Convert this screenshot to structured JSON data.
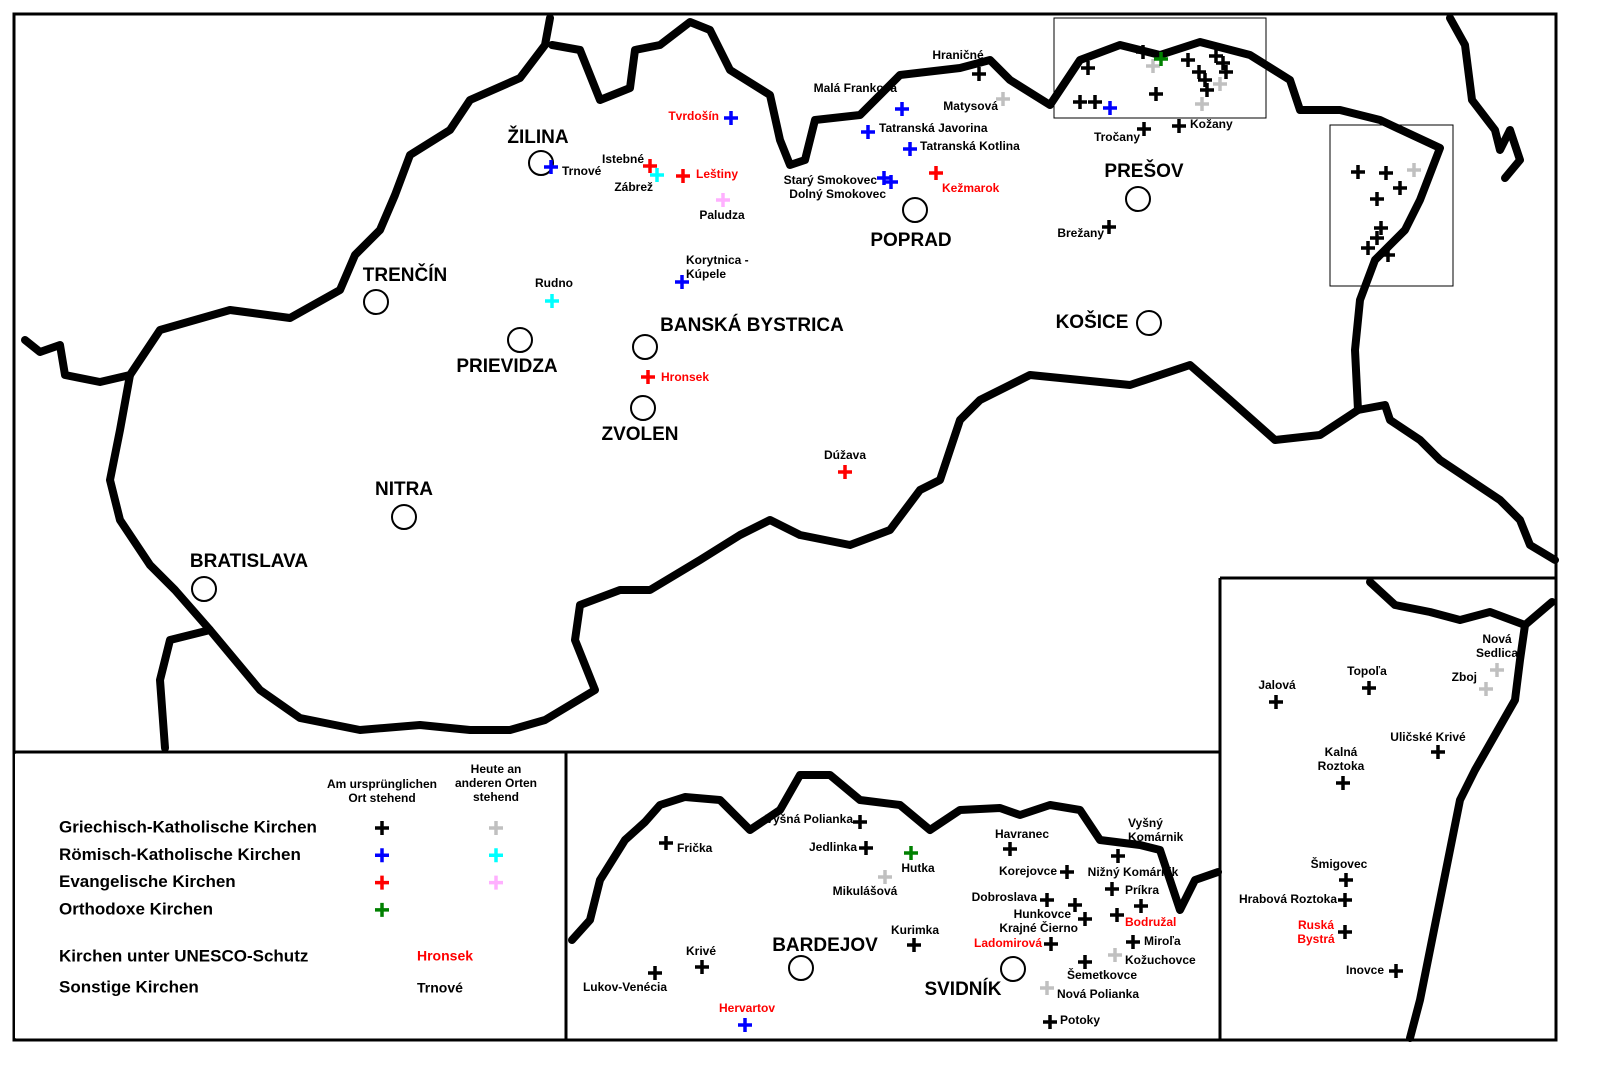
{
  "main_map": {
    "cities": [
      "ŽILINA",
      "TRENČÍN",
      "PRIEVIDZA",
      "BANSKÁ BYSTRICA",
      "ZVOLEN",
      "NITRA",
      "BRATISLAVA",
      "POPRAD",
      "PREŠOV",
      "KOŠICE"
    ],
    "churches": [
      {
        "label": "Trnové",
        "color": "#0000ff"
      },
      {
        "label": "Istebné",
        "color": "#ff0000"
      },
      {
        "label": "Zábrež",
        "color": "#00ffff"
      },
      {
        "label": "Leštiny",
        "color": "#ff0000",
        "unesco": true
      },
      {
        "label": "Paludza",
        "color": "#ffb0ff"
      },
      {
        "label": "Tvrdošín",
        "color": "#0000ff",
        "unesco": true
      },
      {
        "label": [
          "Korytnica -",
          "Kúpele"
        ],
        "color": "#0000ff"
      },
      {
        "label": "Rudno",
        "color": "#00ffff"
      },
      {
        "label": "Hronsek",
        "color": "#ff0000",
        "unesco": true
      },
      {
        "label": "Dúžava",
        "color": "#ff0000"
      },
      {
        "label": "Hraničné",
        "color": "#000000"
      },
      {
        "label": "Malá Franková",
        "color": "#0000ff"
      },
      {
        "label": "Matysová",
        "color": "#c0c0c0"
      },
      {
        "label": "Tatranská Javorina",
        "color": "#0000ff"
      },
      {
        "label": "Tatranská Kotlina",
        "color": "#0000ff"
      },
      {
        "label": "Starý Smokovec",
        "color": "#0000ff"
      },
      {
        "label": "Dolný Smokovec",
        "color": "#0000ff"
      },
      {
        "label": "Kežmarok",
        "color": "#ff0000",
        "unesco": true
      },
      {
        "label": "Tročany",
        "color": "#000000"
      },
      {
        "label": "Kožany",
        "color": "#000000"
      },
      {
        "label": "Brežany",
        "color": "#000000"
      }
    ],
    "unlabeled_churches": [
      "#000000",
      "#000000",
      "#c0c0c0",
      "#008000",
      "#000000",
      "#000000",
      "#000000",
      "#000000",
      "#000000",
      "#000000",
      "#c0c0c0",
      "#000000",
      "#c0c0c0",
      "#000000",
      "#000000",
      "#000000",
      "#0000ff",
      "#000000",
      "#000000",
      "#c0c0c0",
      "#000000",
      "#000000",
      "#000000",
      "#000000",
      "#000000",
      "#000000"
    ]
  },
  "legend": {
    "column_headers": [
      [
        "Am ursprünglichen",
        "Ort stehend"
      ],
      [
        "Heute an",
        "anderen Orten",
        "stehend"
      ]
    ],
    "rows": [
      {
        "label": "Griechisch-Katholische Kirchen",
        "colors": [
          "#000000",
          "#c0c0c0"
        ]
      },
      {
        "label": "Römisch-Katholische Kirchen",
        "colors": [
          "#0000ff",
          "#00ffff"
        ]
      },
      {
        "label": "Evangelische Kirchen",
        "colors": [
          "#ff0000",
          "#ffb0ff"
        ]
      },
      {
        "label": "Orthodoxe Kirchen",
        "colors": [
          "#008000"
        ]
      }
    ],
    "unesco": {
      "label": "Kirchen unter UNESCO-Schutz",
      "example": "Hronsek"
    },
    "other": {
      "label": "Sonstige Kirchen",
      "example": "Trnové"
    }
  },
  "inset_bardejov": {
    "cities": [
      "BARDEJOV",
      "SVIDNÍK"
    ],
    "churches": [
      {
        "label": "Frička",
        "color": "#000000"
      },
      {
        "label": "Vyšná Polianka",
        "color": "#000000"
      },
      {
        "label": "Jedlinka",
        "color": "#000000"
      },
      {
        "label": "Hutka",
        "color": "#008000"
      },
      {
        "label": "Mikulášová",
        "color": "#c0c0c0"
      },
      {
        "label": "Havranec",
        "color": "#000000"
      },
      {
        "label": [
          "Vyšný",
          "Komárnik"
        ],
        "color": "#000000"
      },
      {
        "label": "Korejovce",
        "color": "#000000"
      },
      {
        "label": "Nižný Komárnik",
        "color": "#000000"
      },
      {
        "label": "Príkra",
        "color": "#000000"
      },
      {
        "label": "Dobroslava",
        "color": "#000000"
      },
      {
        "label": "Hunkovce",
        "color": "#000000"
      },
      {
        "label": "Krajné Čierno",
        "color": "#000000"
      },
      {
        "label": "Bodružal",
        "color": "#000000",
        "unesco": true
      },
      {
        "label": "Ladomirová",
        "color": "#000000",
        "unesco": true
      },
      {
        "label": "Miroľa",
        "color": "#000000"
      },
      {
        "label": "Kožuchovce",
        "color": "#c0c0c0"
      },
      {
        "label": "Šemetkovce",
        "color": "#000000"
      },
      {
        "label": "Nová Polianka",
        "color": "#c0c0c0"
      },
      {
        "label": "Potoky",
        "color": "#000000"
      },
      {
        "label": "Kurimka",
        "color": "#000000"
      },
      {
        "label": "Krivé",
        "color": "#000000"
      },
      {
        "label": "Lukov-Venécia",
        "color": "#000000"
      },
      {
        "label": "Hervartov",
        "color": "#0000ff",
        "unesco": true
      }
    ]
  },
  "inset_snina": {
    "churches": [
      {
        "label": "Jalová",
        "color": "#000000"
      },
      {
        "label": "Topoľa",
        "color": "#000000"
      },
      {
        "label": [
          "Nová",
          "Sedlica"
        ],
        "color": "#c0c0c0"
      },
      {
        "label": "Zboj",
        "color": "#c0c0c0"
      },
      {
        "label": "Uličské Krivé",
        "color": "#000000"
      },
      {
        "label": [
          "Kalná",
          "Roztoka"
        ],
        "color": "#000000"
      },
      {
        "label": "Šmigovec",
        "color": "#000000"
      },
      {
        "label": "Hrabová Roztoka",
        "color": "#000000"
      },
      {
        "label": [
          "Ruská",
          "Bystrá"
        ],
        "color": "#000000",
        "unesco": true
      },
      {
        "label": "Inovce",
        "color": "#000000"
      }
    ]
  }
}
